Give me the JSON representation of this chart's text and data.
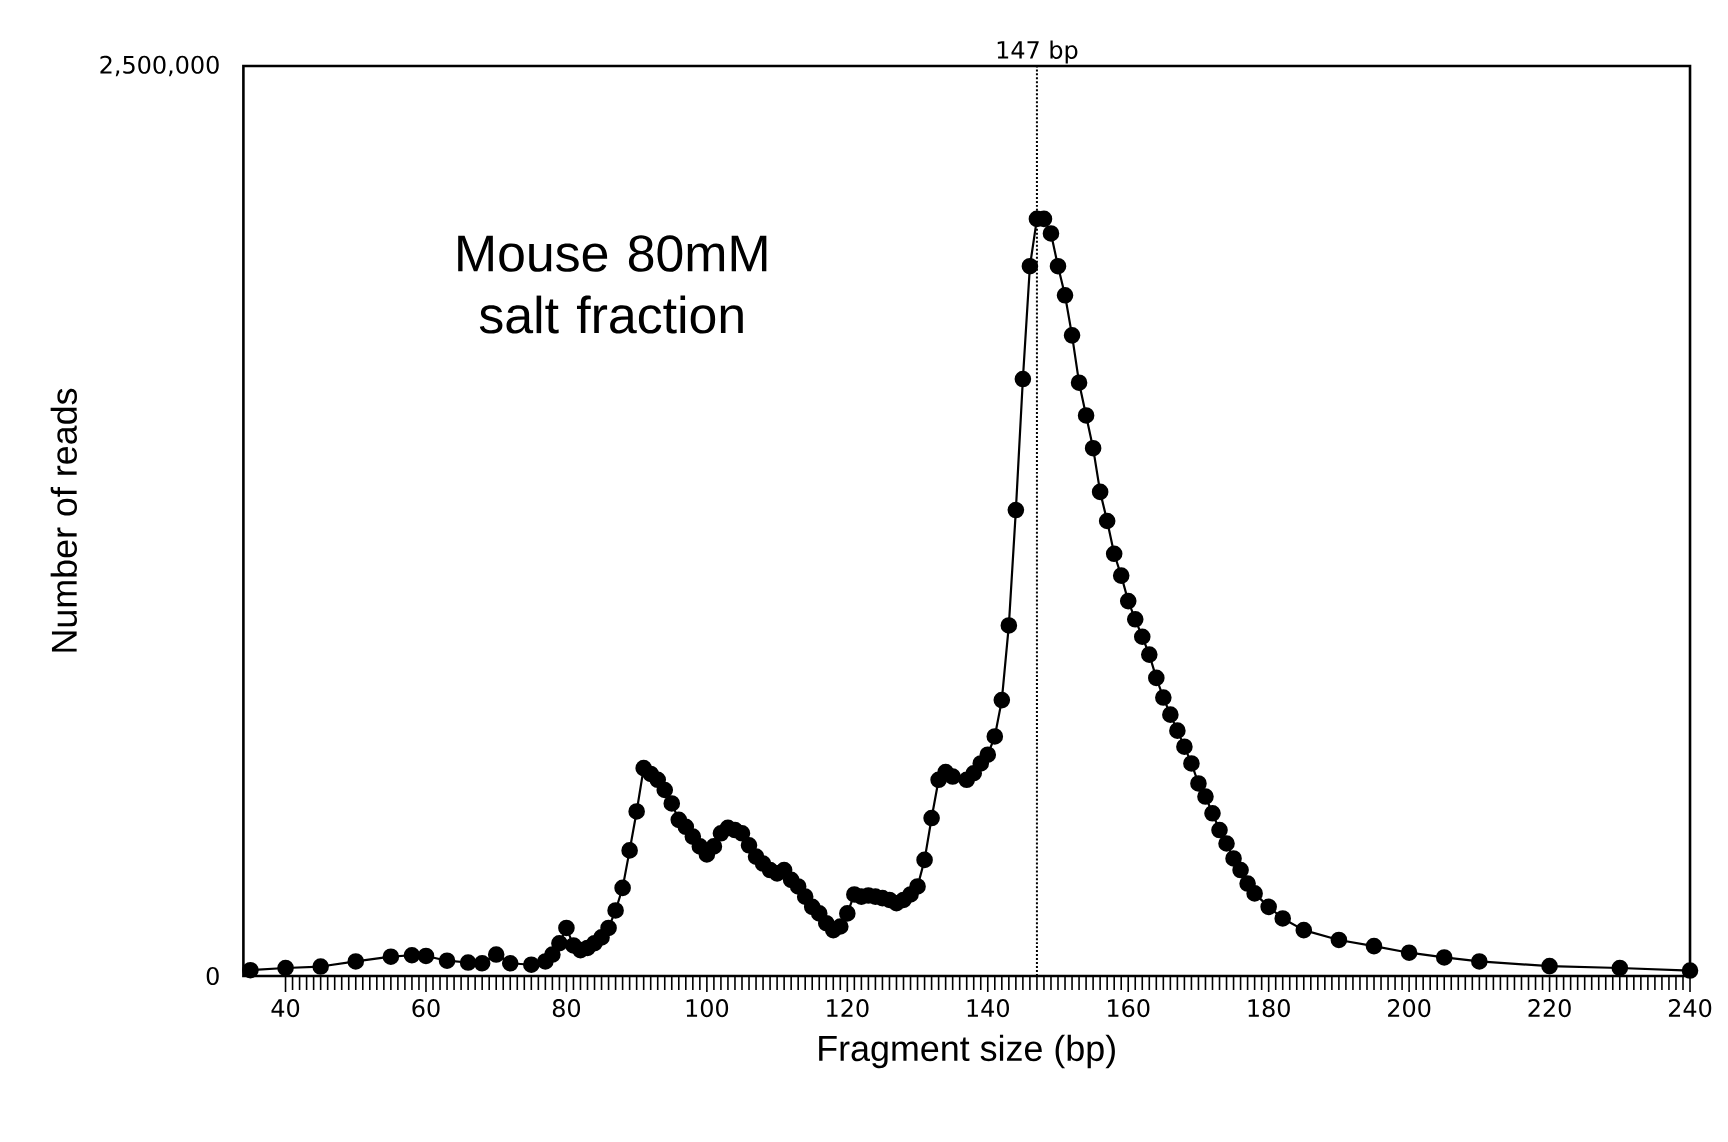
{
  "chart_data": {
    "type": "line",
    "xlabel": "Fragment size (bp)",
    "ylabel": "Number of reads",
    "annotations": [
      "Mouse 80mM salt fraction"
    ],
    "xlim": [
      34,
      240
    ],
    "xticks": [
      40,
      60,
      80,
      100,
      120,
      140,
      160,
      180,
      200,
      220,
      240
    ],
    "ylim": [
      0,
      2500000
    ],
    "yticks": [
      0,
      {
        "value": 2500000,
        "label": "2,500,000"
      }
    ],
    "marker": "circle",
    "line_style": "solid",
    "ref_lines": [
      {
        "axis": "x",
        "value": 147,
        "label": "147 bp",
        "line_style": "dotted",
        "color": "#000000"
      }
    ],
    "series": [
      {
        "color": "#000000",
        "x": [
          35,
          40,
          45,
          50,
          55,
          58,
          60,
          63,
          66,
          68,
          70,
          72,
          75,
          77,
          78,
          79,
          80,
          81,
          82,
          83,
          84,
          85,
          86,
          87,
          88,
          89,
          90,
          91,
          92,
          93,
          94,
          95,
          96,
          97,
          98,
          99,
          100,
          101,
          102,
          103,
          104,
          105,
          106,
          107,
          108,
          109,
          110,
          111,
          112,
          113,
          114,
          115,
          116,
          117,
          118,
          119,
          120,
          121,
          122,
          123,
          124,
          125,
          126,
          127,
          128,
          129,
          130,
          131,
          132,
          133,
          134,
          135,
          137,
          138,
          139,
          140,
          141,
          142,
          143,
          144,
          145,
          146,
          147,
          148,
          149,
          150,
          151,
          152,
          153,
          154,
          155,
          156,
          157,
          158,
          159,
          160,
          161,
          162,
          163,
          164,
          165,
          166,
          167,
          168,
          169,
          170,
          171,
          172,
          173,
          174,
          175,
          176,
          177,
          178,
          180,
          182,
          185,
          190,
          195,
          200,
          205,
          210,
          220,
          230,
          240
        ],
        "values": [
          16000,
          22000,
          26000,
          40000,
          53000,
          57000,
          55000,
          42000,
          37000,
          35000,
          59000,
          35000,
          31000,
          40000,
          59000,
          90000,
          132000,
          84000,
          71000,
          77000,
          90000,
          106000,
          132000,
          180000,
          242000,
          345000,
          452000,
          571000,
          555000,
          539000,
          511000,
          474000,
          429000,
          410000,
          383000,
          356000,
          334000,
          356000,
          392000,
          407000,
          401000,
          392000,
          359000,
          328000,
          309000,
          291000,
          282000,
          291000,
          264000,
          246000,
          218000,
          190000,
          172000,
          145000,
          126000,
          136000,
          172000,
          224000,
          218000,
          221000,
          218000,
          214000,
          209000,
          200000,
          209000,
          224000,
          246000,
          319000,
          434000,
          539000,
          560000,
          548000,
          539000,
          557000,
          584000,
          608000,
          658000,
          758000,
          963000,
          1280000,
          1640000,
          1950000,
          2080000,
          2080000,
          2040000,
          1950000,
          1870000,
          1760000,
          1630000,
          1540000,
          1450000,
          1330000,
          1250000,
          1160000,
          1100000,
          1030000,
          980000,
          932000,
          883000,
          819000,
          765000,
          718000,
          674000,
          630000,
          584000,
          529000,
          493000,
          447000,
          401000,
          364000,
          323000,
          291000,
          254000,
          227000,
          190000,
          158000,
          126000,
          99000,
          82000,
          64000,
          51000,
          40000,
          27000,
          22000,
          15000
        ]
      }
    ]
  }
}
